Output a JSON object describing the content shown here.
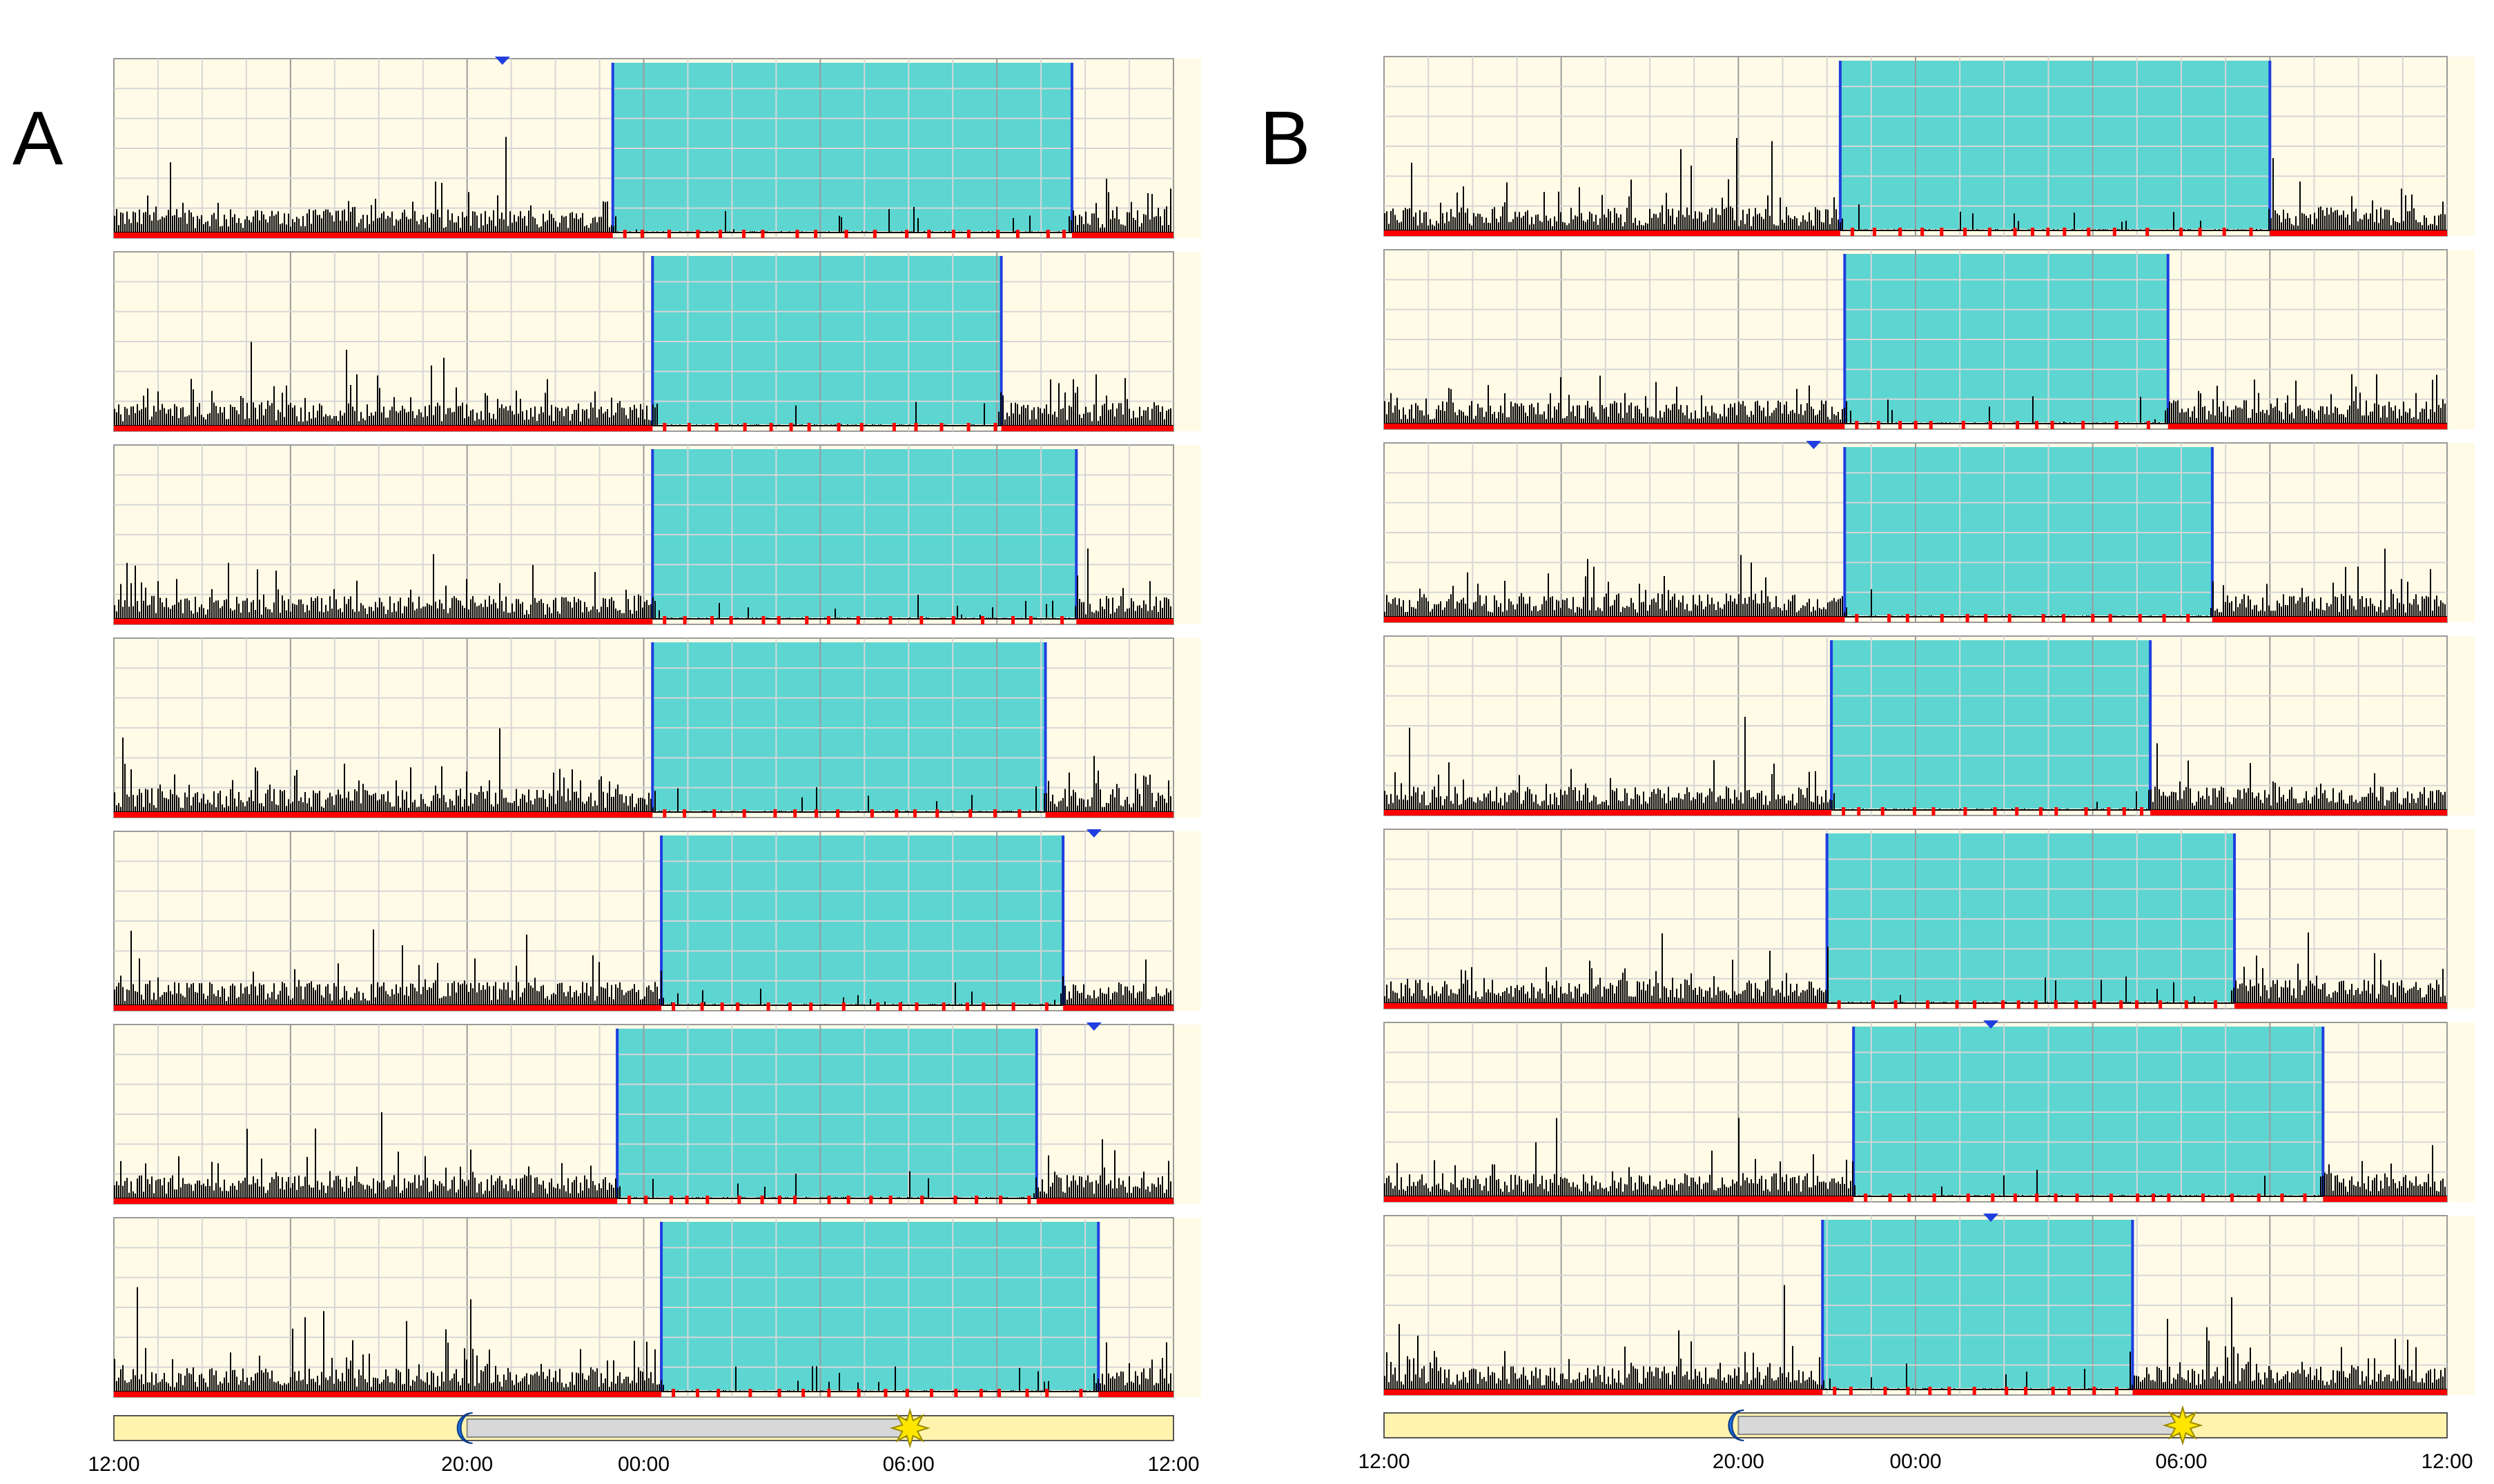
{
  "chart_data": [
    {
      "panel": "A",
      "type": "actogram",
      "x_range_hours": [
        0,
        24
      ],
      "tick_labels": [
        "12:00",
        "20:00",
        "00:00",
        "06:00",
        "12:00"
      ],
      "tick_hours": [
        0,
        8,
        12,
        18,
        24
      ],
      "light_phase": "12:00–20:00 and 06:00–12:00",
      "dark_phase": "20:00–06:00",
      "colors": {
        "rest_band": "#5dd6d2",
        "activity": "#000000",
        "marker": "#ff0000",
        "background": "#fffbe6",
        "boundary": "#1f3fe0"
      },
      "days": [
        {
          "rest_start_hour": 11.3,
          "rest_end_hour": 21.7,
          "indicator_hour": 8.8
        },
        {
          "rest_start_hour": 12.2,
          "rest_end_hour": 20.1,
          "indicator_hour": null
        },
        {
          "rest_start_hour": 12.2,
          "rest_end_hour": 21.8,
          "indicator_hour": null
        },
        {
          "rest_start_hour": 12.2,
          "rest_end_hour": 21.1,
          "indicator_hour": null
        },
        {
          "rest_start_hour": 12.4,
          "rest_end_hour": 21.5,
          "indicator_hour": 22.2
        },
        {
          "rest_start_hour": 11.4,
          "rest_end_hour": 20.9,
          "indicator_hour": 22.2
        },
        {
          "rest_start_hour": 12.4,
          "rest_end_hour": 22.3,
          "indicator_hour": null
        }
      ]
    },
    {
      "panel": "B",
      "type": "actogram",
      "x_range_hours": [
        0,
        24
      ],
      "tick_labels": [
        "12:00",
        "20:00",
        "00:00",
        "06:00",
        "12:00"
      ],
      "tick_hours": [
        0,
        8,
        12,
        18,
        24
      ],
      "light_phase": "12:00–20:00 and 06:00–12:00",
      "dark_phase": "20:00–06:00",
      "colors": {
        "rest_band": "#5dd6d2",
        "activity": "#000000",
        "marker": "#ff0000",
        "background": "#fffbe6",
        "boundary": "#1f3fe0"
      },
      "days": [
        {
          "rest_start_hour": 10.3,
          "rest_end_hour": 20.0,
          "indicator_hour": null
        },
        {
          "rest_start_hour": 10.4,
          "rest_end_hour": 17.7,
          "indicator_hour": null
        },
        {
          "rest_start_hour": 10.4,
          "rest_end_hour": 18.7,
          "indicator_hour": 9.7
        },
        {
          "rest_start_hour": 10.1,
          "rest_end_hour": 17.3,
          "indicator_hour": null
        },
        {
          "rest_start_hour": 10.0,
          "rest_end_hour": 19.2,
          "indicator_hour": null
        },
        {
          "rest_start_hour": 10.6,
          "rest_end_hour": 21.2,
          "indicator_hour": 13.7
        },
        {
          "rest_start_hour": 9.9,
          "rest_end_hour": 16.9,
          "indicator_hour": 13.7
        }
      ]
    }
  ],
  "labels": {
    "panel_a": "A",
    "panel_b": "B"
  },
  "icons": {
    "night_start": "moon-icon",
    "day_start": "sun-icon"
  }
}
